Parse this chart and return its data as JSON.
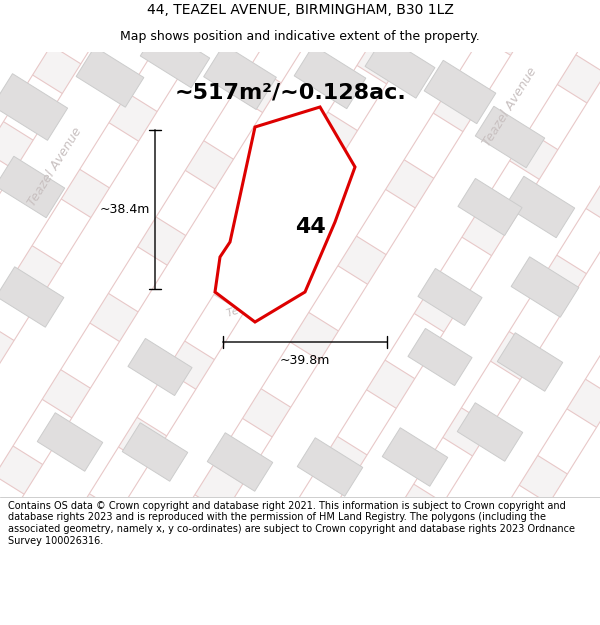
{
  "title_line1": "44, TEAZEL AVENUE, BIRMINGHAM, B30 1LZ",
  "title_line2": "Map shows position and indicative extent of the property.",
  "area_text": "~517m²/~0.128ac.",
  "label_44": "44",
  "dim_vertical": "~38.4m",
  "dim_horizontal": "~39.8m",
  "map_bg": "#f5f3f3",
  "road_fill": "#ffffff",
  "road_outline": "#e8c8c8",
  "building_fill": "#e0dede",
  "building_outline": "#cccccc",
  "plot_fill": "#ffffff",
  "plot_stroke": "#dd0000",
  "street_label_color": "#c8c0c0",
  "footer_bg": "#ffffff",
  "footer_text": "Contains OS data © Crown copyright and database right 2021. This information is subject to Crown copyright and database rights 2023 and is reproduced with the permission of HM Land Registry. The polygons (including the associated geometry, namely x, y co-ordinates) are subject to Crown copyright and database rights 2023 Ordnance Survey 100026316.",
  "title_fontsize": 10,
  "subtitle_fontsize": 9,
  "area_fontsize": 16,
  "label_fontsize": 16,
  "dim_fontsize": 9,
  "footer_fontsize": 7,
  "street_label_fontsize": 9,
  "prop_x": [
    230,
    255,
    320,
    355,
    335,
    305,
    255,
    215,
    220,
    230
  ],
  "prop_y": [
    255,
    370,
    390,
    330,
    275,
    205,
    175,
    205,
    240,
    255
  ],
  "buildings": [
    [
      30,
      390,
      65,
      38,
      -32
    ],
    [
      30,
      310,
      60,
      35,
      -32
    ],
    [
      30,
      200,
      58,
      35,
      -32
    ],
    [
      110,
      420,
      58,
      35,
      -32
    ],
    [
      175,
      440,
      60,
      35,
      -32
    ],
    [
      240,
      420,
      62,
      38,
      -32
    ],
    [
      330,
      420,
      62,
      36,
      -32
    ],
    [
      400,
      430,
      60,
      36,
      -32
    ],
    [
      460,
      405,
      62,
      36,
      -32
    ],
    [
      510,
      360,
      60,
      35,
      -32
    ],
    [
      540,
      290,
      60,
      35,
      -32
    ],
    [
      545,
      210,
      58,
      35,
      -32
    ],
    [
      530,
      135,
      56,
      34,
      -32
    ],
    [
      490,
      65,
      56,
      34,
      -32
    ],
    [
      415,
      40,
      56,
      34,
      -32
    ],
    [
      330,
      30,
      56,
      34,
      -32
    ],
    [
      240,
      35,
      56,
      34,
      -32
    ],
    [
      155,
      45,
      56,
      34,
      -32
    ],
    [
      70,
      55,
      56,
      34,
      -32
    ],
    [
      160,
      130,
      55,
      33,
      -32
    ],
    [
      440,
      140,
      55,
      33,
      -32
    ],
    [
      450,
      200,
      55,
      33,
      -32
    ],
    [
      490,
      290,
      55,
      33,
      -32
    ]
  ],
  "roads": [
    [
      [
        0,
        80,
        155,
        75,
        0
      ],
      [
        170,
        260,
        260,
        170,
        170
      ]
    ],
    [
      [
        0,
        80,
        155,
        75,
        0
      ],
      [
        320,
        400,
        400,
        320,
        320
      ]
    ],
    [
      [
        155,
        235,
        310,
        235,
        155
      ],
      [
        260,
        260,
        440,
        440,
        260
      ]
    ],
    [
      [
        235,
        315,
        390,
        310,
        235
      ],
      [
        260,
        440,
        440,
        260,
        260
      ]
    ],
    [
      [
        310,
        390,
        465,
        390,
        310
      ],
      [
        440,
        440,
        260,
        260,
        440
      ]
    ],
    [
      [
        390,
        470,
        545,
        470,
        390
      ],
      [
        440,
        440,
        260,
        260,
        440
      ]
    ],
    [
      [
        470,
        550,
        600,
        550,
        470
      ],
      [
        440,
        440,
        260,
        260,
        440
      ]
    ],
    [
      [
        550,
        600,
        600,
        550
      ],
      [
        260,
        260,
        440,
        440
      ]
    ],
    [
      [
        0,
        80,
        155,
        75,
        0
      ],
      [
        0,
        80,
        80,
        0,
        0
      ]
    ],
    [
      [
        155,
        235,
        310,
        235,
        155
      ],
      [
        0,
        80,
        80,
        0,
        0
      ]
    ],
    [
      [
        235,
        315,
        390,
        310,
        235
      ],
      [
        0,
        80,
        80,
        0,
        0
      ]
    ],
    [
      [
        310,
        390,
        465,
        390,
        310
      ],
      [
        0,
        80,
        80,
        0,
        0
      ]
    ],
    [
      [
        390,
        470,
        545,
        470,
        390
      ],
      [
        0,
        80,
        80,
        0,
        0
      ]
    ],
    [
      [
        470,
        550,
        600,
        550,
        470
      ],
      [
        0,
        80,
        80,
        0,
        0
      ]
    ]
  ],
  "red_roads": [
    [
      [
        0,
        600
      ],
      [
        170,
        170
      ]
    ],
    [
      [
        0,
        600
      ],
      [
        260,
        260
      ]
    ],
    [
      [
        0,
        600
      ],
      [
        350,
        350
      ]
    ],
    [
      [
        0,
        600
      ],
      [
        440,
        440
      ]
    ],
    [
      [
        75,
        75
      ],
      [
        0,
        440
      ]
    ],
    [
      [
        155,
        155
      ],
      [
        0,
        440
      ]
    ],
    [
      [
        235,
        235
      ],
      [
        0,
        440
      ]
    ],
    [
      [
        310,
        310
      ],
      [
        0,
        440
      ]
    ],
    [
      [
        390,
        390
      ],
      [
        0,
        440
      ]
    ],
    [
      [
        470,
        470
      ],
      [
        0,
        440
      ]
    ],
    [
      [
        550,
        550
      ],
      [
        0,
        440
      ]
    ]
  ]
}
